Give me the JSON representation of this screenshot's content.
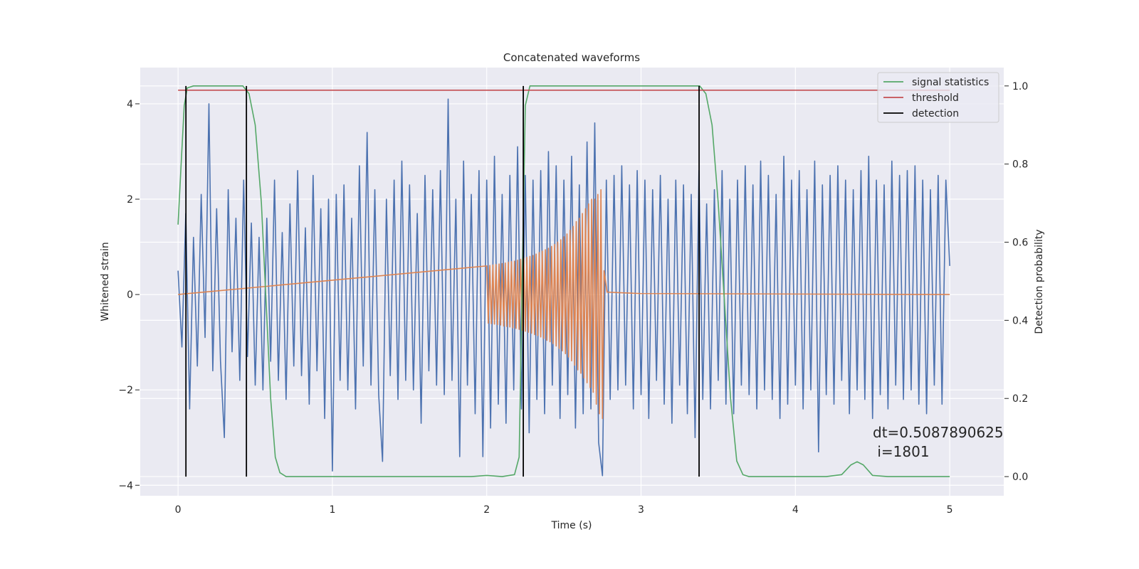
{
  "chart_data": {
    "type": "line",
    "title": "Concatenated waveforms",
    "xlabel": "Time (s)",
    "ylabel": "Whitened strain",
    "y2label": "Detection probability",
    "xlim": [
      -0.245,
      5.35
    ],
    "ylim": [
      -4.22,
      4.76
    ],
    "y2lim": [
      -0.049,
      1.047
    ],
    "xticks": [
      0,
      1,
      2,
      3,
      4,
      5
    ],
    "yticks": [
      {
        "value": -4,
        "label": "−4"
      },
      {
        "value": -2,
        "label": "−2"
      },
      0,
      2,
      4
    ],
    "y2ticks": [
      {
        "value": 0,
        "label": "0.0"
      },
      {
        "value": 0.2,
        "label": "0.2"
      },
      {
        "value": 0.4,
        "label": "0.4"
      },
      {
        "value": 0.6,
        "label": "0.6"
      },
      {
        "value": 0.8,
        "label": "0.8"
      },
      {
        "value": 1,
        "label": "1.0"
      }
    ],
    "grid": true,
    "legend": "upper right",
    "annotation": [
      "dt=0.5087890625",
      " i=1801"
    ],
    "series": [
      {
        "color": "#4c72b0",
        "x": [
          0,
          0.025,
          0.05,
          0.075,
          0.1,
          0.125,
          0.15,
          0.175,
          0.2,
          0.225,
          0.25,
          0.275,
          0.3,
          0.325,
          0.35,
          0.375,
          0.4,
          0.425,
          0.45,
          0.475,
          0.5,
          0.525,
          0.55,
          0.575,
          0.6,
          0.625,
          0.65,
          0.675,
          0.7,
          0.725,
          0.75,
          0.775,
          0.8,
          0.825,
          0.85,
          0.875,
          0.9,
          0.925,
          0.95,
          0.975,
          1,
          1.025,
          1.05,
          1.075,
          1.1,
          1.125,
          1.15,
          1.175,
          1.2,
          1.225,
          1.25,
          1.275,
          1.3,
          1.325,
          1.35,
          1.375,
          1.4,
          1.425,
          1.45,
          1.475,
          1.5,
          1.525,
          1.55,
          1.575,
          1.6,
          1.625,
          1.65,
          1.675,
          1.7,
          1.725,
          1.75,
          1.775,
          1.8,
          1.825,
          1.85,
          1.875,
          1.9,
          1.925,
          1.95,
          1.975,
          2,
          2.025,
          2.05,
          2.075,
          2.1,
          2.125,
          2.15,
          2.175,
          2.2,
          2.225,
          2.25,
          2.275,
          2.3,
          2.325,
          2.35,
          2.375,
          2.4,
          2.425,
          2.45,
          2.475,
          2.5,
          2.525,
          2.55,
          2.575,
          2.6,
          2.625,
          2.65,
          2.675,
          2.7,
          2.725,
          2.75,
          2.775,
          2.8,
          2.825,
          2.85,
          2.875,
          2.9,
          2.925,
          2.95,
          2.975,
          3,
          3.025,
          3.05,
          3.075,
          3.1,
          3.125,
          3.15,
          3.175,
          3.2,
          3.225,
          3.25,
          3.275,
          3.3,
          3.325,
          3.35,
          3.375,
          3.4,
          3.425,
          3.45,
          3.475,
          3.5,
          3.525,
          3.55,
          3.575,
          3.6,
          3.625,
          3.65,
          3.675,
          3.7,
          3.725,
          3.75,
          3.775,
          3.8,
          3.825,
          3.85,
          3.875,
          3.9,
          3.925,
          3.95,
          3.975,
          4,
          4.025,
          4.05,
          4.075,
          4.1,
          4.125,
          4.15,
          4.175,
          4.2,
          4.225,
          4.25,
          4.275,
          4.3,
          4.325,
          4.35,
          4.375,
          4.4,
          4.425,
          4.45,
          4.475,
          4.5,
          4.525,
          4.55,
          4.575,
          4.6,
          4.625,
          4.65,
          4.675,
          4.7,
          4.725,
          4.75,
          4.775,
          4.8,
          4.825,
          4.85,
          4.875,
          4.9,
          4.925,
          4.95,
          4.975,
          5
        ],
        "values": [
          0.5,
          -1.1,
          1.7,
          -2.4,
          1.2,
          -1.5,
          2.1,
          -0.9,
          4.0,
          -1.6,
          1.8,
          -1.4,
          -3.0,
          2.2,
          -1.2,
          1.6,
          -1.8,
          2.4,
          -1.3,
          1.5,
          -1.9,
          1.2,
          -2.0,
          1.6,
          -1.4,
          2.4,
          -1.8,
          1.3,
          -2.2,
          1.9,
          -1.5,
          2.6,
          -1.7,
          1.4,
          -2.3,
          2.5,
          -1.6,
          1.8,
          -2.6,
          2.0,
          -3.7,
          2.1,
          -1.8,
          2.3,
          -2.0,
          1.6,
          -2.4,
          2.7,
          -1.5,
          3.4,
          -1.9,
          2.2,
          -2.1,
          -3.5,
          2.0,
          -1.7,
          2.4,
          -2.2,
          2.8,
          -1.8,
          2.3,
          -2.0,
          1.7,
          -2.7,
          2.5,
          -1.6,
          2.2,
          -1.9,
          2.6,
          -2.1,
          4.1,
          -1.8,
          2.0,
          -3.4,
          2.8,
          -1.9,
          2.1,
          -2.5,
          2.6,
          -3.4,
          2.4,
          -2.8,
          2.9,
          -2.3,
          2.1,
          -2.7,
          2.5,
          -2.0,
          3.1,
          -2.4,
          2.5,
          -2.9,
          2.4,
          -2.2,
          2.6,
          -2.5,
          3.0,
          -1.9,
          2.7,
          -2.6,
          2.4,
          -2.1,
          2.9,
          -2.8,
          2.3,
          -2.5,
          3.2,
          -2.4,
          3.6,
          -3.1,
          -3.8,
          2.4,
          -2.2,
          2.5,
          -2.0,
          2.7,
          -1.9,
          2.3,
          -2.4,
          2.6,
          -2.1,
          2.4,
          -2.6,
          2.2,
          -1.8,
          2.5,
          -2.3,
          2.0,
          -2.7,
          2.4,
          -1.9,
          2.3,
          -2.5,
          2.1,
          -3.0,
          2.6,
          -2.2,
          1.9,
          -2.4,
          2.2,
          -1.8,
          2.6,
          -2.3,
          2.0,
          -2.5,
          2.4,
          -1.9,
          2.7,
          -2.1,
          2.3,
          -2.4,
          2.8,
          -2.0,
          2.5,
          -2.2,
          2.1,
          -2.6,
          2.9,
          -2.3,
          2.4,
          -1.9,
          2.6,
          -2.4,
          2.2,
          -2.0,
          2.8,
          -3.3,
          2.3,
          -2.1,
          2.5,
          -2.3,
          2.7,
          -1.8,
          2.4,
          -2.5,
          2.2,
          -2.0,
          2.6,
          -2.2,
          2.9,
          -2.6,
          2.4,
          -2.1,
          2.3,
          -2.4,
          2.8,
          -1.9,
          2.5,
          -2.2,
          2.6,
          -2.0,
          2.7,
          -2.3,
          2.4,
          -2.5,
          2.2,
          -1.9,
          2.5,
          -2.3,
          2.4,
          0.6
        ]
      },
      {
        "color": "#dd8452",
        "x": [
          0,
          2,
          2.01,
          2.02,
          2.03,
          2.04,
          2.05,
          2.06,
          2.07,
          2.08,
          2.09,
          2.1,
          2.11,
          2.12,
          2.13,
          2.14,
          2.15,
          2.16,
          2.17,
          2.18,
          2.19,
          2.2,
          2.21,
          2.22,
          2.23,
          2.24,
          2.25,
          2.26,
          2.27,
          2.28,
          2.29,
          2.3,
          2.31,
          2.32,
          2.33,
          2.34,
          2.35,
          2.36,
          2.37,
          2.38,
          2.39,
          2.4,
          2.41,
          2.42,
          2.43,
          2.44,
          2.45,
          2.46,
          2.47,
          2.48,
          2.49,
          2.5,
          2.51,
          2.52,
          2.53,
          2.54,
          2.55,
          2.56,
          2.57,
          2.58,
          2.59,
          2.6,
          2.61,
          2.62,
          2.63,
          2.64,
          2.65,
          2.66,
          2.67,
          2.68,
          2.69,
          2.7,
          2.71,
          2.72,
          2.73,
          2.74,
          2.75,
          2.76,
          2.78,
          3,
          5
        ],
        "values": [
          0,
          0.6,
          -0.6,
          0.61,
          -0.61,
          0.62,
          -0.62,
          0.63,
          -0.63,
          0.64,
          -0.64,
          0.65,
          -0.66,
          0.66,
          -0.67,
          0.68,
          -0.68,
          0.69,
          -0.7,
          0.7,
          -0.71,
          0.72,
          -0.73,
          0.74,
          -0.75,
          0.76,
          -0.77,
          0.78,
          -0.79,
          0.8,
          -0.81,
          0.82,
          -0.84,
          0.85,
          -0.86,
          0.88,
          -0.89,
          0.91,
          -0.92,
          0.94,
          -0.96,
          0.97,
          -0.99,
          1.01,
          -1.03,
          1.05,
          -1.08,
          1.1,
          -1.13,
          1.15,
          -1.18,
          1.21,
          -1.24,
          1.27,
          -1.31,
          1.35,
          -1.39,
          1.43,
          -1.48,
          1.53,
          -1.58,
          1.6,
          -1.65,
          1.7,
          -1.75,
          1.8,
          -1.85,
          1.9,
          -1.95,
          2.0,
          -2.05,
          2.0,
          -2.3,
          2.1,
          -2.5,
          2.2,
          -2.6,
          0.5,
          0.05,
          0.02,
          0
        ]
      },
      {
        "name": "signal statistics",
        "color": "#55a868",
        "axis": "y2",
        "x": [
          0,
          0.02,
          0.04,
          0.06,
          0.1,
          0.42,
          0.46,
          0.5,
          0.54,
          0.57,
          0.6,
          0.63,
          0.66,
          0.7,
          1.9,
          2,
          2.1,
          2.18,
          2.21,
          2.23,
          2.25,
          2.28,
          3.38,
          3.42,
          3.46,
          3.5,
          3.54,
          3.58,
          3.62,
          3.66,
          3.7,
          4.2,
          4.3,
          4.36,
          4.4,
          4.44,
          4.5,
          4.6,
          5
        ],
        "values": [
          0.645,
          0.8,
          0.95,
          0.995,
          1,
          1,
          0.98,
          0.9,
          0.7,
          0.45,
          0.2,
          0.05,
          0.01,
          0,
          0,
          0.003,
          0,
          0.005,
          0.05,
          0.5,
          0.95,
          1,
          1,
          0.98,
          0.9,
          0.7,
          0.45,
          0.2,
          0.04,
          0.005,
          0,
          0,
          0.005,
          0.03,
          0.038,
          0.03,
          0.003,
          0,
          0
        ]
      },
      {
        "name": "threshold",
        "color": "#c44e52",
        "axis": "y2",
        "x": [
          0,
          5
        ],
        "values": [
          0.989,
          0.989
        ]
      },
      {
        "name": "detection",
        "color": "#000000",
        "axis": "y2",
        "style": "stem",
        "x": [
          0.051,
          0.443,
          2.237,
          3.376
        ],
        "values": [
          1,
          1,
          1,
          1
        ]
      }
    ]
  }
}
